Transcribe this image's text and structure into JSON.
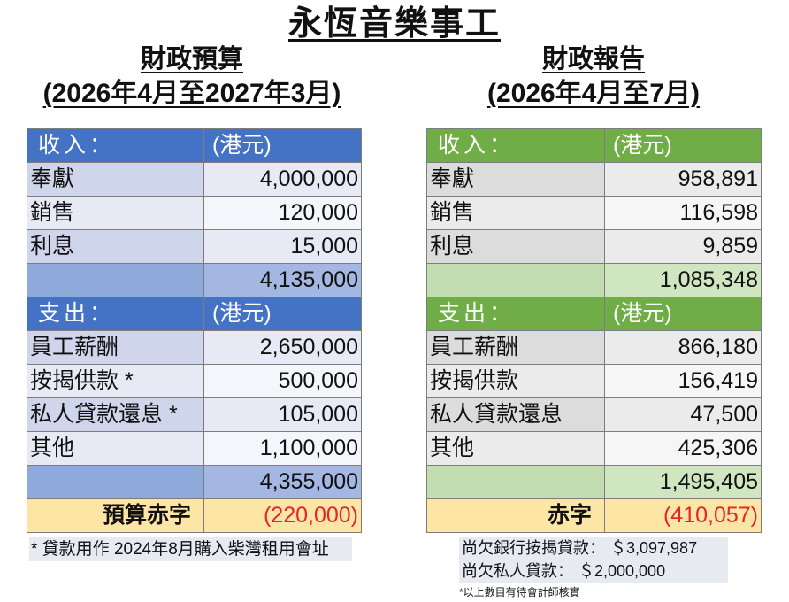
{
  "title": "永恆音樂事工",
  "budget": {
    "heading": "財政預算",
    "period": "(2026年4月至2027年3月)",
    "income_header": {
      "label": "收入：",
      "unit": "(港元)"
    },
    "income_rows": [
      {
        "label": "奉獻",
        "value": "4,000,000"
      },
      {
        "label": "銷售",
        "value": "120,000"
      },
      {
        "label": "利息",
        "value": "15,000"
      }
    ],
    "income_total": "4,135,000",
    "expense_header": {
      "label": "支出：",
      "unit": "(港元)"
    },
    "expense_rows": [
      {
        "label": "員工薪酬",
        "value": "2,650,000"
      },
      {
        "label": "按揭供款 *",
        "value": "500,000"
      },
      {
        "label": "私人貸款還息 *",
        "value": "105,000"
      },
      {
        "label": "其他",
        "value": "1,100,000"
      }
    ],
    "expense_total": "4,355,000",
    "deficit": {
      "label": "預算赤字",
      "value": "(220,000)"
    },
    "footnote": "* 貸款用作 2024年8月購入柴灣租用會址"
  },
  "report": {
    "heading": "財政報告",
    "period": "(2026年4月至7月)",
    "income_header": {
      "label": "收入：",
      "unit": "(港元)"
    },
    "income_rows": [
      {
        "label": "奉獻",
        "value": "958,891"
      },
      {
        "label": "銷售",
        "value": "116,598"
      },
      {
        "label": "利息",
        "value": "9,859"
      }
    ],
    "income_total": "1,085,348",
    "expense_header": {
      "label": "支出：",
      "unit": "(港元)"
    },
    "expense_rows": [
      {
        "label": "員工薪酬",
        "value": "866,180"
      },
      {
        "label": "按揭供款",
        "value": "156,419"
      },
      {
        "label": "私人貸款還息",
        "value": "47,500"
      },
      {
        "label": "其他",
        "value": "425,306"
      }
    ],
    "expense_total": "1,495,405",
    "deficit": {
      "label": "赤字",
      "value": "(410,057)"
    },
    "outstanding": [
      {
        "label": "尚欠銀行按揭貸款：",
        "amount": "＄3,097,987"
      },
      {
        "label": "尚欠私人貸款：",
        "amount": "＄2,000,000"
      }
    ],
    "footnote": "*以上數目有待會計師核實"
  },
  "colors": {
    "budget_header": "#4472c4",
    "report_header": "#70ad47",
    "deficit_row": "#fde5a5",
    "deficit_text": "#e3262b"
  }
}
